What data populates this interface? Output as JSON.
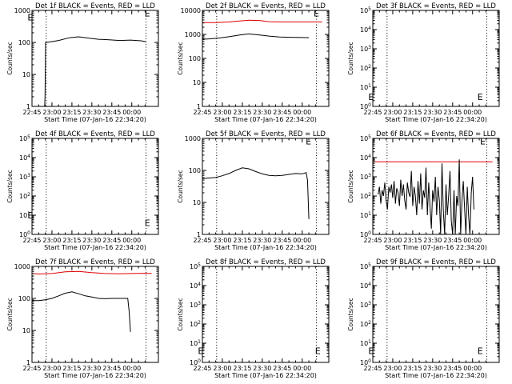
{
  "colors": {
    "events": "#000000",
    "lld": "#e00000",
    "axis": "#000000",
    "background": "#ffffff"
  },
  "x_tick_labels": [
    "22:45",
    "23:00",
    "23:15",
    "23:30",
    "23:45",
    "00:00"
  ],
  "x_label": "Start Time (07-Jan-16 22:34:20)",
  "y_label": "Counts/sec",
  "chart_data": [
    {
      "type": "line",
      "title": "Det 1f BLACK = Events, RED = LLD",
      "y_scale": "log",
      "ylim": [
        1,
        1000
      ],
      "y_tick_labels": [
        "1",
        "10",
        "100",
        "1000"
      ],
      "xlim_min": [
        0,
        95
      ],
      "vlines_min": [
        10.7,
        85.7
      ],
      "series": [
        {
          "color": "events",
          "x": [
            9.5,
            9.8,
            10.2,
            11,
            14,
            20,
            28,
            35,
            43,
            50,
            58,
            66,
            74,
            82,
            86
          ],
          "y": [
            1,
            2,
            100,
            100,
            105,
            115,
            140,
            150,
            135,
            125,
            120,
            115,
            118,
            112,
            105
          ]
        }
      ],
      "marker_label": "E",
      "marker_x_min": [
        -4,
        84
      ],
      "marker_y_frac": [
        0.93,
        0.97
      ]
    },
    {
      "type": "line",
      "title": "Det 2f BLACK = Events, RED = LLD",
      "y_scale": "log",
      "ylim": [
        1,
        10000
      ],
      "y_tick_labels": [
        "1",
        "10",
        "100",
        "1000",
        "10000"
      ],
      "xlim_min": [
        0,
        95
      ],
      "vlines_min": [
        10.7,
        85.7
      ],
      "series": [
        {
          "color": "lld",
          "x": [
            -5,
            10,
            20,
            28,
            35,
            43,
            50,
            58,
            66,
            74,
            82,
            90
          ],
          "y": [
            3100,
            3100,
            3300,
            3600,
            3900,
            3800,
            3400,
            3300,
            3300,
            3300,
            3300,
            3300
          ]
        },
        {
          "color": "events",
          "x": [
            -3,
            -2.7,
            -2.5,
            0,
            5,
            12,
            20,
            28,
            35,
            43,
            50,
            58,
            66,
            74,
            80
          ],
          "y": [
            8,
            300,
            620,
            630,
            650,
            700,
            800,
            950,
            1050,
            950,
            850,
            780,
            760,
            740,
            730
          ]
        }
      ],
      "marker_label": "E",
      "marker_x_min": [
        83
      ],
      "marker_y_frac": [
        0.97
      ]
    },
    {
      "type": "line",
      "title": "Det 3f BLACK = Events, RED = LLD",
      "y_scale": "log",
      "ylim": [
        1,
        100000
      ],
      "y_tick_labels": [
        "10^0",
        "10^1",
        "10^2",
        "10^3",
        "10^4",
        "10^5"
      ],
      "xlim_min": [
        0,
        95
      ],
      "vlines_min": [
        10.7,
        85.7
      ],
      "series": [],
      "marker_label": "E",
      "marker_x_min": [
        -4,
        78
      ],
      "marker_y_frac": [
        0.1,
        0.1
      ]
    },
    {
      "type": "line",
      "title": "Det 4f BLACK = Events, RED = LLD",
      "y_scale": "log",
      "ylim": [
        1,
        100000
      ],
      "y_tick_labels": [
        "10^0",
        "10^1",
        "10^2",
        "10^3",
        "10^4",
        "10^5"
      ],
      "xlim_min": [
        0,
        95
      ],
      "vlines_min": [
        10.7,
        85.7
      ],
      "series": [],
      "marker_label": "E",
      "marker_x_min": [
        -4,
        84
      ],
      "marker_y_frac": [
        0.2,
        0.12
      ]
    },
    {
      "type": "line",
      "title": "Det 5f BLACK = Events, RED = LLD",
      "y_scale": "log",
      "ylim": [
        1,
        1000
      ],
      "y_tick_labels": [
        "1",
        "10",
        "100",
        "1000"
      ],
      "xlim_min": [
        0,
        95
      ],
      "vlines_min": [
        10.7,
        85.7
      ],
      "series": [
        {
          "color": "events",
          "x": [
            -4,
            0,
            5,
            10,
            15,
            20,
            25,
            30,
            35,
            40,
            45,
            50,
            55,
            60,
            65,
            70,
            75,
            78,
            79,
            80
          ],
          "y": [
            55,
            55,
            58,
            60,
            68,
            80,
            100,
            120,
            112,
            92,
            78,
            70,
            68,
            70,
            75,
            80,
            78,
            85,
            50,
            3
          ]
        }
      ],
      "marker_label": "E",
      "marker_x_min": [
        77
      ],
      "marker_y_frac": [
        0.97
      ]
    },
    {
      "type": "line",
      "title": "Det 6f BLACK = Events, RED = LLD",
      "y_scale": "log",
      "ylim": [
        1,
        100000
      ],
      "y_tick_labels": [
        "10^0",
        "10^1",
        "10^2",
        "10^3",
        "10^4",
        "10^5"
      ],
      "xlim_min": [
        0,
        95
      ],
      "vlines_min": [
        10.7,
        85.7
      ],
      "series": [
        {
          "color": "lld",
          "x": [
            -5,
            10,
            30,
            50,
            70,
            90
          ],
          "y": [
            6000,
            6000,
            6000,
            6000,
            6000,
            6000
          ]
        },
        {
          "color": "events",
          "x": [
            4,
            5,
            6,
            7,
            8,
            9,
            10,
            11,
            12,
            13,
            14,
            15,
            16,
            17,
            18,
            19,
            20,
            21,
            22,
            23,
            24,
            25,
            26,
            27,
            28,
            29,
            30,
            31,
            32,
            33,
            34,
            35,
            36,
            37,
            38,
            39,
            40,
            41,
            42,
            43,
            44,
            45,
            46,
            47,
            48,
            49,
            50,
            51,
            52,
            53,
            54,
            55,
            56,
            57,
            58,
            59,
            60,
            61,
            62,
            63,
            64,
            65,
            66,
            67,
            68,
            69,
            70,
            71,
            72,
            73,
            74,
            75,
            76
          ],
          "y": [
            120,
            300,
            40,
            200,
            100,
            500,
            60,
            20,
            300,
            150,
            400,
            80,
            600,
            40,
            250,
            150,
            30,
            700,
            100,
            400,
            60,
            20,
            500,
            150,
            90,
            2000,
            30,
            300,
            100,
            10,
            600,
            40,
            1500,
            20,
            200,
            80,
            3000,
            10,
            500,
            30,
            2,
            200,
            50,
            1000,
            10,
            300,
            60,
            1,
            5000,
            20,
            1,
            400,
            10,
            100,
            2000,
            5,
            1,
            200,
            1,
            100,
            30,
            8000,
            1,
            50,
            600,
            20,
            1,
            300,
            10,
            1,
            150,
            1000,
            20
          ]
        }
      ],
      "marker_label": "E",
      "marker_x_min": [
        80
      ],
      "marker_y_frac": [
        0.97
      ]
    },
    {
      "type": "line",
      "title": "Det 7f BLACK = Events, RED = LLD",
      "y_scale": "log",
      "ylim": [
        1,
        1000
      ],
      "y_tick_labels": [
        "1",
        "10",
        "100",
        "1000"
      ],
      "xlim_min": [
        0,
        95
      ],
      "vlines_min": [
        10.7,
        85.7
      ],
      "series": [
        {
          "color": "lld",
          "x": [
            -5,
            5,
            15,
            25,
            35,
            45,
            55,
            65,
            75,
            85,
            90
          ],
          "y": [
            620,
            580,
            600,
            680,
            700,
            640,
            600,
            590,
            600,
            610,
            600
          ]
        },
        {
          "color": "events",
          "x": [
            -4,
            0,
            5,
            10,
            15,
            20,
            25,
            30,
            35,
            40,
            45,
            50,
            55,
            60,
            65,
            70,
            72,
            73,
            74
          ],
          "y": [
            85,
            85,
            85,
            90,
            100,
            120,
            145,
            160,
            140,
            120,
            110,
            100,
            98,
            100,
            100,
            100,
            100,
            40,
            9
          ]
        }
      ],
      "marker_label": "",
      "marker_x_min": [],
      "marker_y_frac": []
    },
    {
      "type": "line",
      "title": "Det 8f BLACK = Events, RED = LLD",
      "y_scale": "log",
      "ylim": [
        1,
        100000
      ],
      "y_tick_labels": [
        "10^0",
        "10^1",
        "10^2",
        "10^3",
        "10^4",
        "10^5"
      ],
      "xlim_min": [
        0,
        95
      ],
      "vlines_min": [
        10.7,
        85.7
      ],
      "series": [],
      "marker_label": "E",
      "marker_x_min": [
        -4,
        84
      ],
      "marker_y_frac": [
        0.12,
        0.12
      ]
    },
    {
      "type": "line",
      "title": "Det 9f BLACK = Events, RED = LLD",
      "y_scale": "log",
      "ylim": [
        1,
        100000
      ],
      "y_tick_labels": [
        "10^0",
        "10^1",
        "10^2",
        "10^3",
        "10^4",
        "10^5"
      ],
      "xlim_min": [
        0,
        95
      ],
      "vlines_min": [
        10.7,
        85.7
      ],
      "series": [],
      "marker_label": "E",
      "marker_x_min": [
        -4,
        78
      ],
      "marker_y_frac": [
        0.12,
        0.12
      ]
    }
  ]
}
